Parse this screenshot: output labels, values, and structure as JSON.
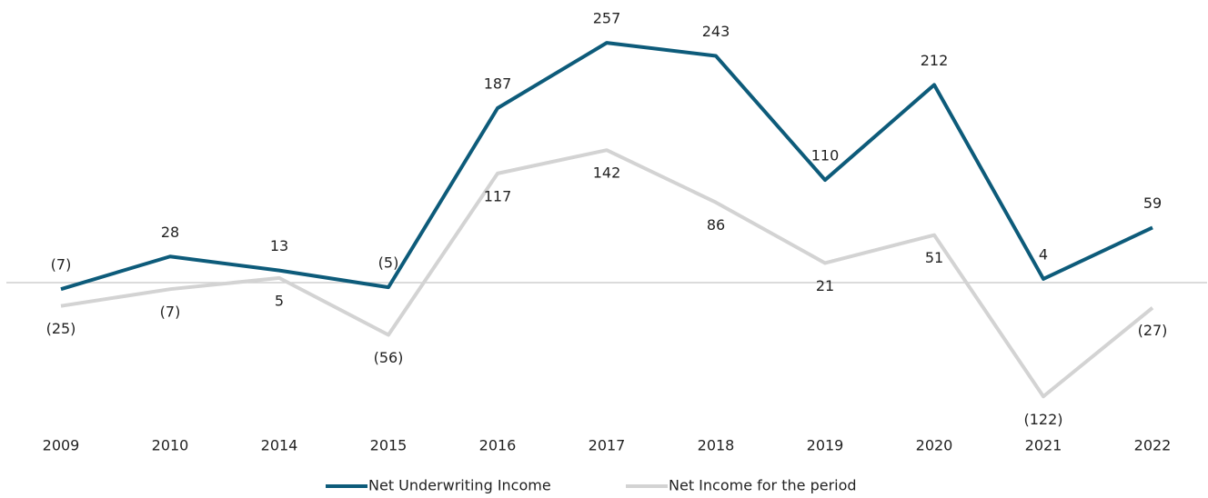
{
  "chart_data": {
    "type": "line",
    "categories": [
      "2009",
      "2010",
      "2014",
      "2015",
      "2016",
      "2017",
      "2018",
      "2019",
      "2020",
      "2021",
      "2022"
    ],
    "series": [
      {
        "name": "Net Underwriting Income",
        "color": "#0d5b7a",
        "values": [
          -7,
          28,
          13,
          -5,
          187,
          257,
          243,
          110,
          212,
          4,
          59
        ],
        "value_labels": [
          "(7)",
          "28",
          "13",
          "(5)",
          "187",
          "257",
          "243",
          "110",
          "212",
          "4",
          "59"
        ]
      },
      {
        "name": "Net Income for the period",
        "color": "#d3d3d3",
        "values": [
          -25,
          -7,
          5,
          -56,
          117,
          142,
          86,
          21,
          51,
          -122,
          -27
        ],
        "value_labels": [
          "(25)",
          "(7)",
          "5",
          "(56)",
          "117",
          "142",
          "86",
          "21",
          "51",
          "(122)",
          "(27)"
        ]
      }
    ],
    "ylim": [
      -150,
      300
    ]
  }
}
